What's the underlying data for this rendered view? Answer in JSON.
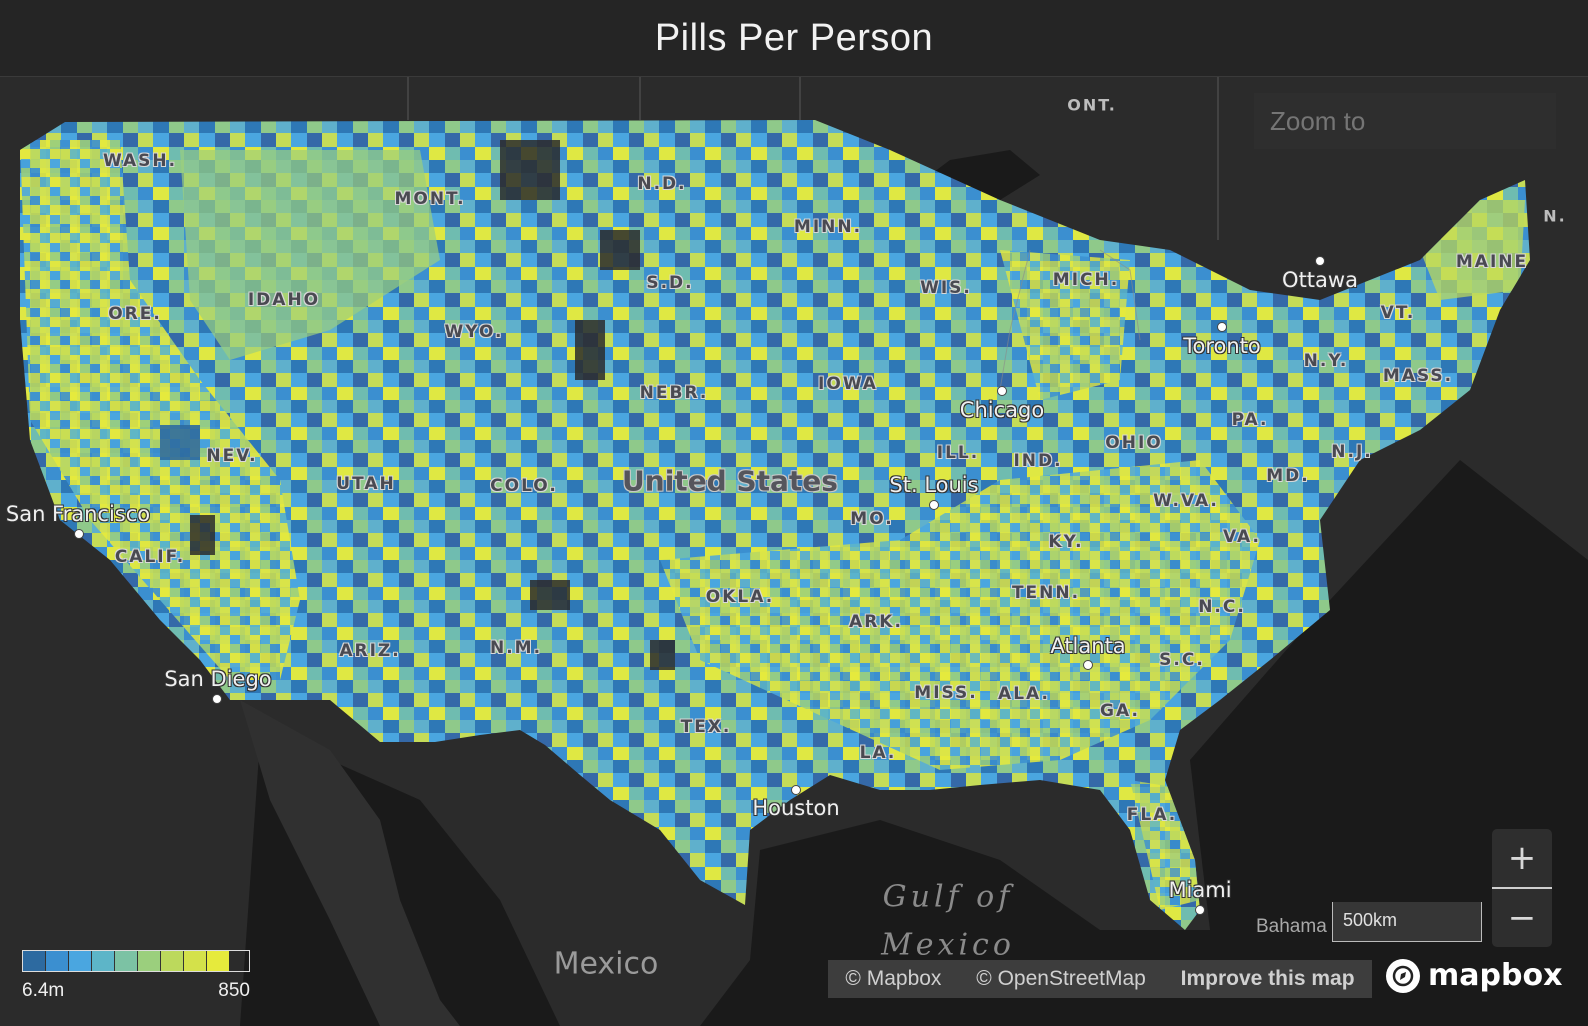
{
  "header": {
    "title": "Pills Per Person"
  },
  "zoom_to": {
    "placeholder": "Zoom to"
  },
  "map": {
    "country_label": "United States",
    "state_labels": [
      "WASH.",
      "MONT.",
      "N.D.",
      "MINN.",
      "S.D.",
      "IDAHO",
      "ORE.",
      "WYO.",
      "WIS.",
      "MICH.",
      "NEBR.",
      "IOWA",
      "NEV.",
      "UTAH",
      "COLO.",
      "ILL.",
      "IND.",
      "OHIO",
      "PA.",
      "N.Y.",
      "VT.",
      "MAINE",
      "MASS.",
      "N.J.",
      "MD.",
      "W.VA.",
      "VA.",
      "CALIF.",
      "MO.",
      "KY.",
      "OKLA.",
      "ARK.",
      "TENN.",
      "N.C.",
      "ARIZ.",
      "N.M.",
      "S.C.",
      "MISS.",
      "ALA.",
      "GA.",
      "TEX.",
      "LA.",
      "FLA."
    ],
    "province_labels": [
      "ONT.",
      "N."
    ],
    "cities": [
      "San Francisco",
      "San Diego",
      "Chicago",
      "St. Louis",
      "Atlanta",
      "Houston",
      "Miami",
      "Toronto",
      "Ottawa"
    ],
    "water_labels": [
      "Gulf of",
      "Mexico"
    ],
    "other_labels": {
      "mexico": "Mexico",
      "bahamas": "Bahama"
    }
  },
  "controls": {
    "zoom_in": "+",
    "zoom_out": "−",
    "scale": "500km"
  },
  "attribution": {
    "mapbox": "© Mapbox",
    "osm": "© OpenStreetMap",
    "improve": "Improve this map",
    "logo": "mapbox"
  },
  "legend": {
    "min_label": "6.4m",
    "max_label": "850",
    "colors": [
      "#2d6aa0",
      "#3b8fd0",
      "#4aa6e0",
      "#5db5c8",
      "#7cc2a4",
      "#9bcf7d",
      "#bcd95c",
      "#d4e14a",
      "#e6ea3c"
    ]
  },
  "colors": {
    "background": "#1c1c1c",
    "land_dark": "#2b2b2b",
    "water": "#1a1a1a"
  }
}
